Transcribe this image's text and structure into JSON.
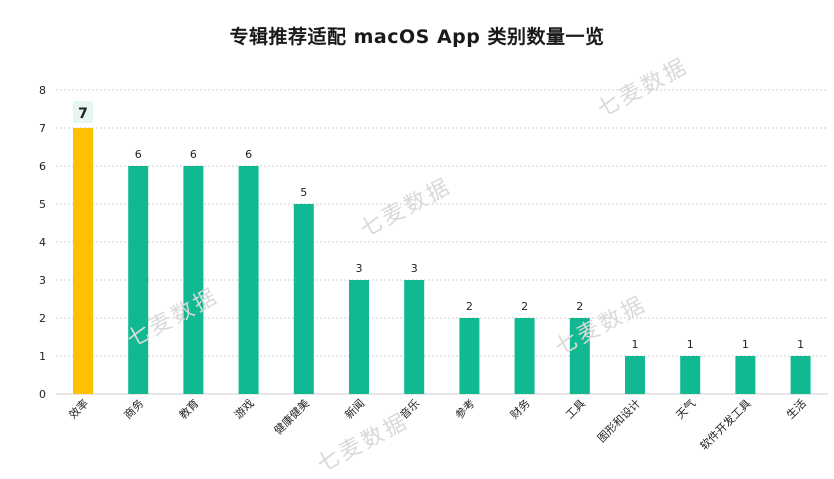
{
  "chart_data": {
    "type": "bar",
    "title": "专辑推荐适配 macOS App 类别数量一览",
    "categories": [
      "效率",
      "商务",
      "教育",
      "游戏",
      "健康健美",
      "新闻",
      "音乐",
      "参考",
      "财务",
      "工具",
      "图形和设计",
      "天气",
      "软件开发工具",
      "生活"
    ],
    "values": [
      7,
      6,
      6,
      6,
      5,
      3,
      3,
      2,
      2,
      2,
      1,
      1,
      1,
      1
    ],
    "highlight_index": 0,
    "ylim": [
      0,
      8
    ],
    "yticks": [
      0,
      1,
      2,
      3,
      4,
      5,
      6,
      7,
      8
    ],
    "grid": true,
    "xlabel": "",
    "ylabel": "",
    "colors": {
      "bar": "#10b991",
      "highlight": "#ffc000",
      "highlight_label_bg": "#e5f7ef",
      "grid": "#cccccc",
      "text": "#222222"
    }
  },
  "watermark": "七麦数据"
}
